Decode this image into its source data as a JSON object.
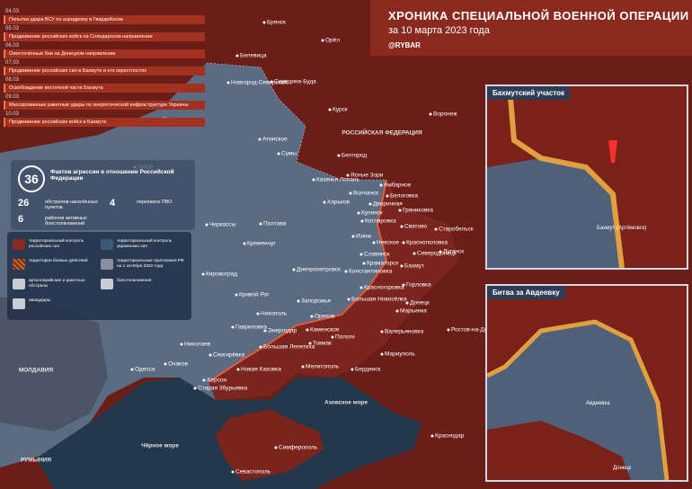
{
  "header": {
    "title": "ХРОНИКА СПЕЦИАЛЬНОЙ ВОЕННОЙ ОПЕРАЦИИ",
    "subtitle": "за 10 марта 2023 года",
    "brand": "@RYBAR"
  },
  "timeline": [
    {
      "date": "04.03",
      "text": "Попытка удара ВСУ по аэродрому в Гвардейском"
    },
    {
      "date": "05.03",
      "text": "Продвижение российских войск на Соледарском направлении"
    },
    {
      "date": "06.03",
      "text": "Ожесточённые бои на Донецком направлении"
    },
    {
      "date": "07.03",
      "text": "Продвижение российских сил в Бахмуте и его окрестностях"
    },
    {
      "date": "08.03",
      "text": "Освобождение восточной части Бахмута"
    },
    {
      "date": "09.03",
      "text": "Массированные ракетные удары по энергетической инфраструктуре Украины"
    },
    {
      "date": "10.03",
      "text": "Продвижение российских войск в Бахмуте"
    }
  ],
  "stats": {
    "total": 36,
    "total_label": "Фактов агрессии в отношении Российской Федерации",
    "items": [
      {
        "value": 26,
        "label": "обстрелов населённых пунктов"
      },
      {
        "value": 4,
        "label": "перехвата ПВО"
      },
      {
        "value": 6,
        "label": "районов активных боестолкновений"
      }
    ]
  },
  "legend": [
    "территориальный контроль российских сил",
    "территориальный контроль украинских сил",
    "территория боевых действий",
    "территориальные притязания РФ на 1 октября 2022 года",
    "артиллерийские и ракетные обстрелы",
    "боестолкновения",
    "авиаудары"
  ],
  "insets": [
    {
      "title": "Бахмутский участок",
      "labels": [
        "Бахмут (Артёмовск)"
      ]
    },
    {
      "title": "Битва за Авдеевку",
      "labels": [
        "Авдеевка",
        "Донецк"
      ]
    }
  ],
  "regions": [
    "РОССИЙСКАЯ ФЕДЕРАЦИЯ",
    "МОЛДАВИЯ",
    "РУМЫНИЯ",
    "Азовское море",
    "Чёрное море"
  ],
  "cities": [
    "Брянск",
    "Орёл",
    "Курск",
    "Воронеж",
    "Белгород",
    "Белевица",
    "Новгород-Северский",
    "Середина-Буда",
    "Чернигов",
    "Сумы",
    "Атинское",
    "КИЕВ",
    "Харьков",
    "Казачья Лопань",
    "Ясные Зори",
    "Волчанск",
    "Амбарное",
    "Белоговка",
    "Дворичная",
    "Купянск",
    "Гряниковка",
    "Котляровка",
    "Сватово",
    "Старобельск",
    "Изюм",
    "Невское",
    "Краснополовка",
    "Северодонецк",
    "Луганск",
    "Славянск",
    "Краматорск",
    "Константиновка",
    "Бахмут",
    "Горловка",
    "Донецк",
    "Красногоровка",
    "Большая Новосёлка",
    "Марьинка",
    "Запорожье",
    "Днепропетровск",
    "Полтава",
    "Кременчуг",
    "Черкассы",
    "Кировоград",
    "Кривой Рог",
    "Никополь",
    "Энергодар",
    "Каменское",
    "Орехов",
    "Пологи",
    "Токмак",
    "Валерьяновка",
    "Мариуполь",
    "Ростов-на-Дону",
    "Гавриловка",
    "Большая Лепетиха",
    "Новая Каховка",
    "Херсон",
    "Старая Збурьевка",
    "Снигирёвка",
    "Николаев",
    "Очаков",
    "Одесса",
    "Мелитополь",
    "Бердянск",
    "Краснодар",
    "Симферополь",
    "Севастополь"
  ]
}
